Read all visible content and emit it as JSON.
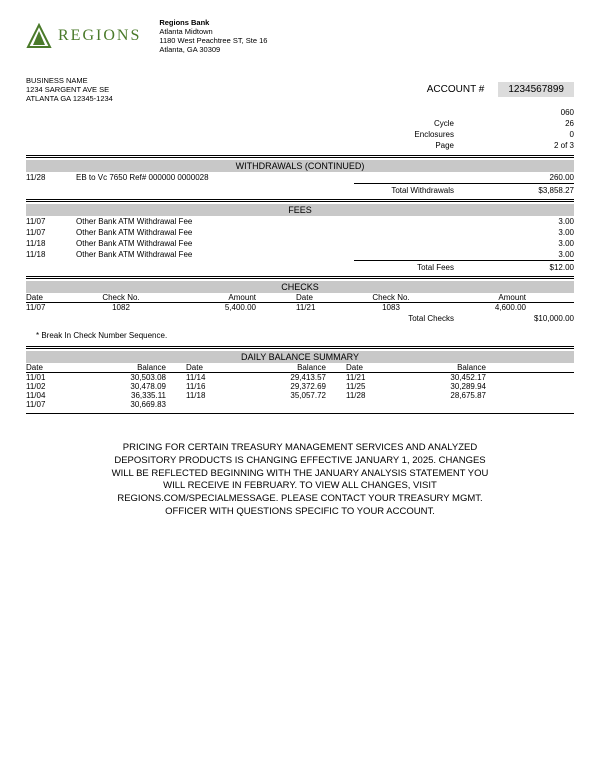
{
  "bank": {
    "name": "Regions Bank",
    "addr1": "Atlanta Midtown",
    "addr2": "1180 West Peachtree ST, Ste 16",
    "addr3": "Atlanta, GA 30309",
    "logo_text": "REGIONS",
    "logo_color": "#4a7a2a"
  },
  "customer": {
    "name": "BUSINESS NAME",
    "addr1": "1234 SARGENT AVE SE",
    "addr2": "ATLANTA GA 12345-1234"
  },
  "account": {
    "label": "ACCOUNT #",
    "number": "1234567899",
    "meta": [
      {
        "label": "",
        "value": "060"
      },
      {
        "label": "Cycle",
        "value": "26"
      },
      {
        "label": "Enclosures",
        "value": "0"
      },
      {
        "label": "Page",
        "value": "2 of 3"
      }
    ]
  },
  "withdrawals": {
    "title": "WITHDRAWALS (CONTINUED)",
    "rows": [
      {
        "date": "11/28",
        "desc": "EB to Vc 7650 Ref# 000000 0000028",
        "amount": "260.00"
      }
    ],
    "total_label": "Total Withdrawals",
    "total": "$3,858.27"
  },
  "fees": {
    "title": "FEES",
    "rows": [
      {
        "date": "11/07",
        "desc": "Other Bank ATM Withdrawal Fee",
        "amount": "3.00"
      },
      {
        "date": "11/07",
        "desc": "Other Bank ATM Withdrawal Fee",
        "amount": "3.00"
      },
      {
        "date": "11/18",
        "desc": "Other Bank ATM Withdrawal Fee",
        "amount": "3.00"
      },
      {
        "date": "11/18",
        "desc": "Other Bank ATM Withdrawal Fee",
        "amount": "3.00"
      }
    ],
    "total_label": "Total Fees",
    "total": "$12.00"
  },
  "checks": {
    "title": "CHECKS",
    "headers": {
      "date": "Date",
      "checkno": "Check No.",
      "amount": "Amount"
    },
    "rows": [
      {
        "d1": "11/07",
        "n1": "1082",
        "a1": "5,400.00",
        "d2": "11/21",
        "n2": "1083",
        "a2": "4,600.00"
      }
    ],
    "total_label": "Total Checks",
    "total": "$10,000.00",
    "note": "* Break In Check Number Sequence."
  },
  "balances": {
    "title": "DAILY BALANCE SUMMARY",
    "headers": {
      "date": "Date",
      "balance": "Balance"
    },
    "rows": [
      {
        "d1": "11/01",
        "b1": "30,503.08",
        "d2": "11/14",
        "b2": "29,413.57",
        "d3": "11/21",
        "b3": "30,452.17"
      },
      {
        "d1": "11/02",
        "b1": "30,478.09",
        "d2": "11/16",
        "b2": "29,372.69",
        "d3": "11/25",
        "b3": "30,289.94"
      },
      {
        "d1": "11/04",
        "b1": "36,335.11",
        "d2": "11/18",
        "b2": "35,057.72",
        "d3": "11/28",
        "b3": "28,675.87"
      },
      {
        "d1": "11/07",
        "b1": "30,669.83",
        "d2": "",
        "b2": "",
        "d3": "",
        "b3": ""
      }
    ]
  },
  "notice": "PRICING FOR CERTAIN TREASURY MANAGEMENT SERVICES AND ANALYZED DEPOSITORY PRODUCTS IS CHANGING EFFECTIVE JANUARY 1, 2025. CHANGES WILL BE REFLECTED BEGINNING WITH THE JANUARY ANALYSIS STATEMENT YOU WILL RECEIVE IN FEBRUARY. TO VIEW ALL CHANGES, VISIT REGIONS.COM/SPECIALMESSAGE. PLEASE CONTACT YOUR TREASURY MGMT. OFFICER WITH QUESTIONS SPECIFIC TO YOUR ACCOUNT."
}
